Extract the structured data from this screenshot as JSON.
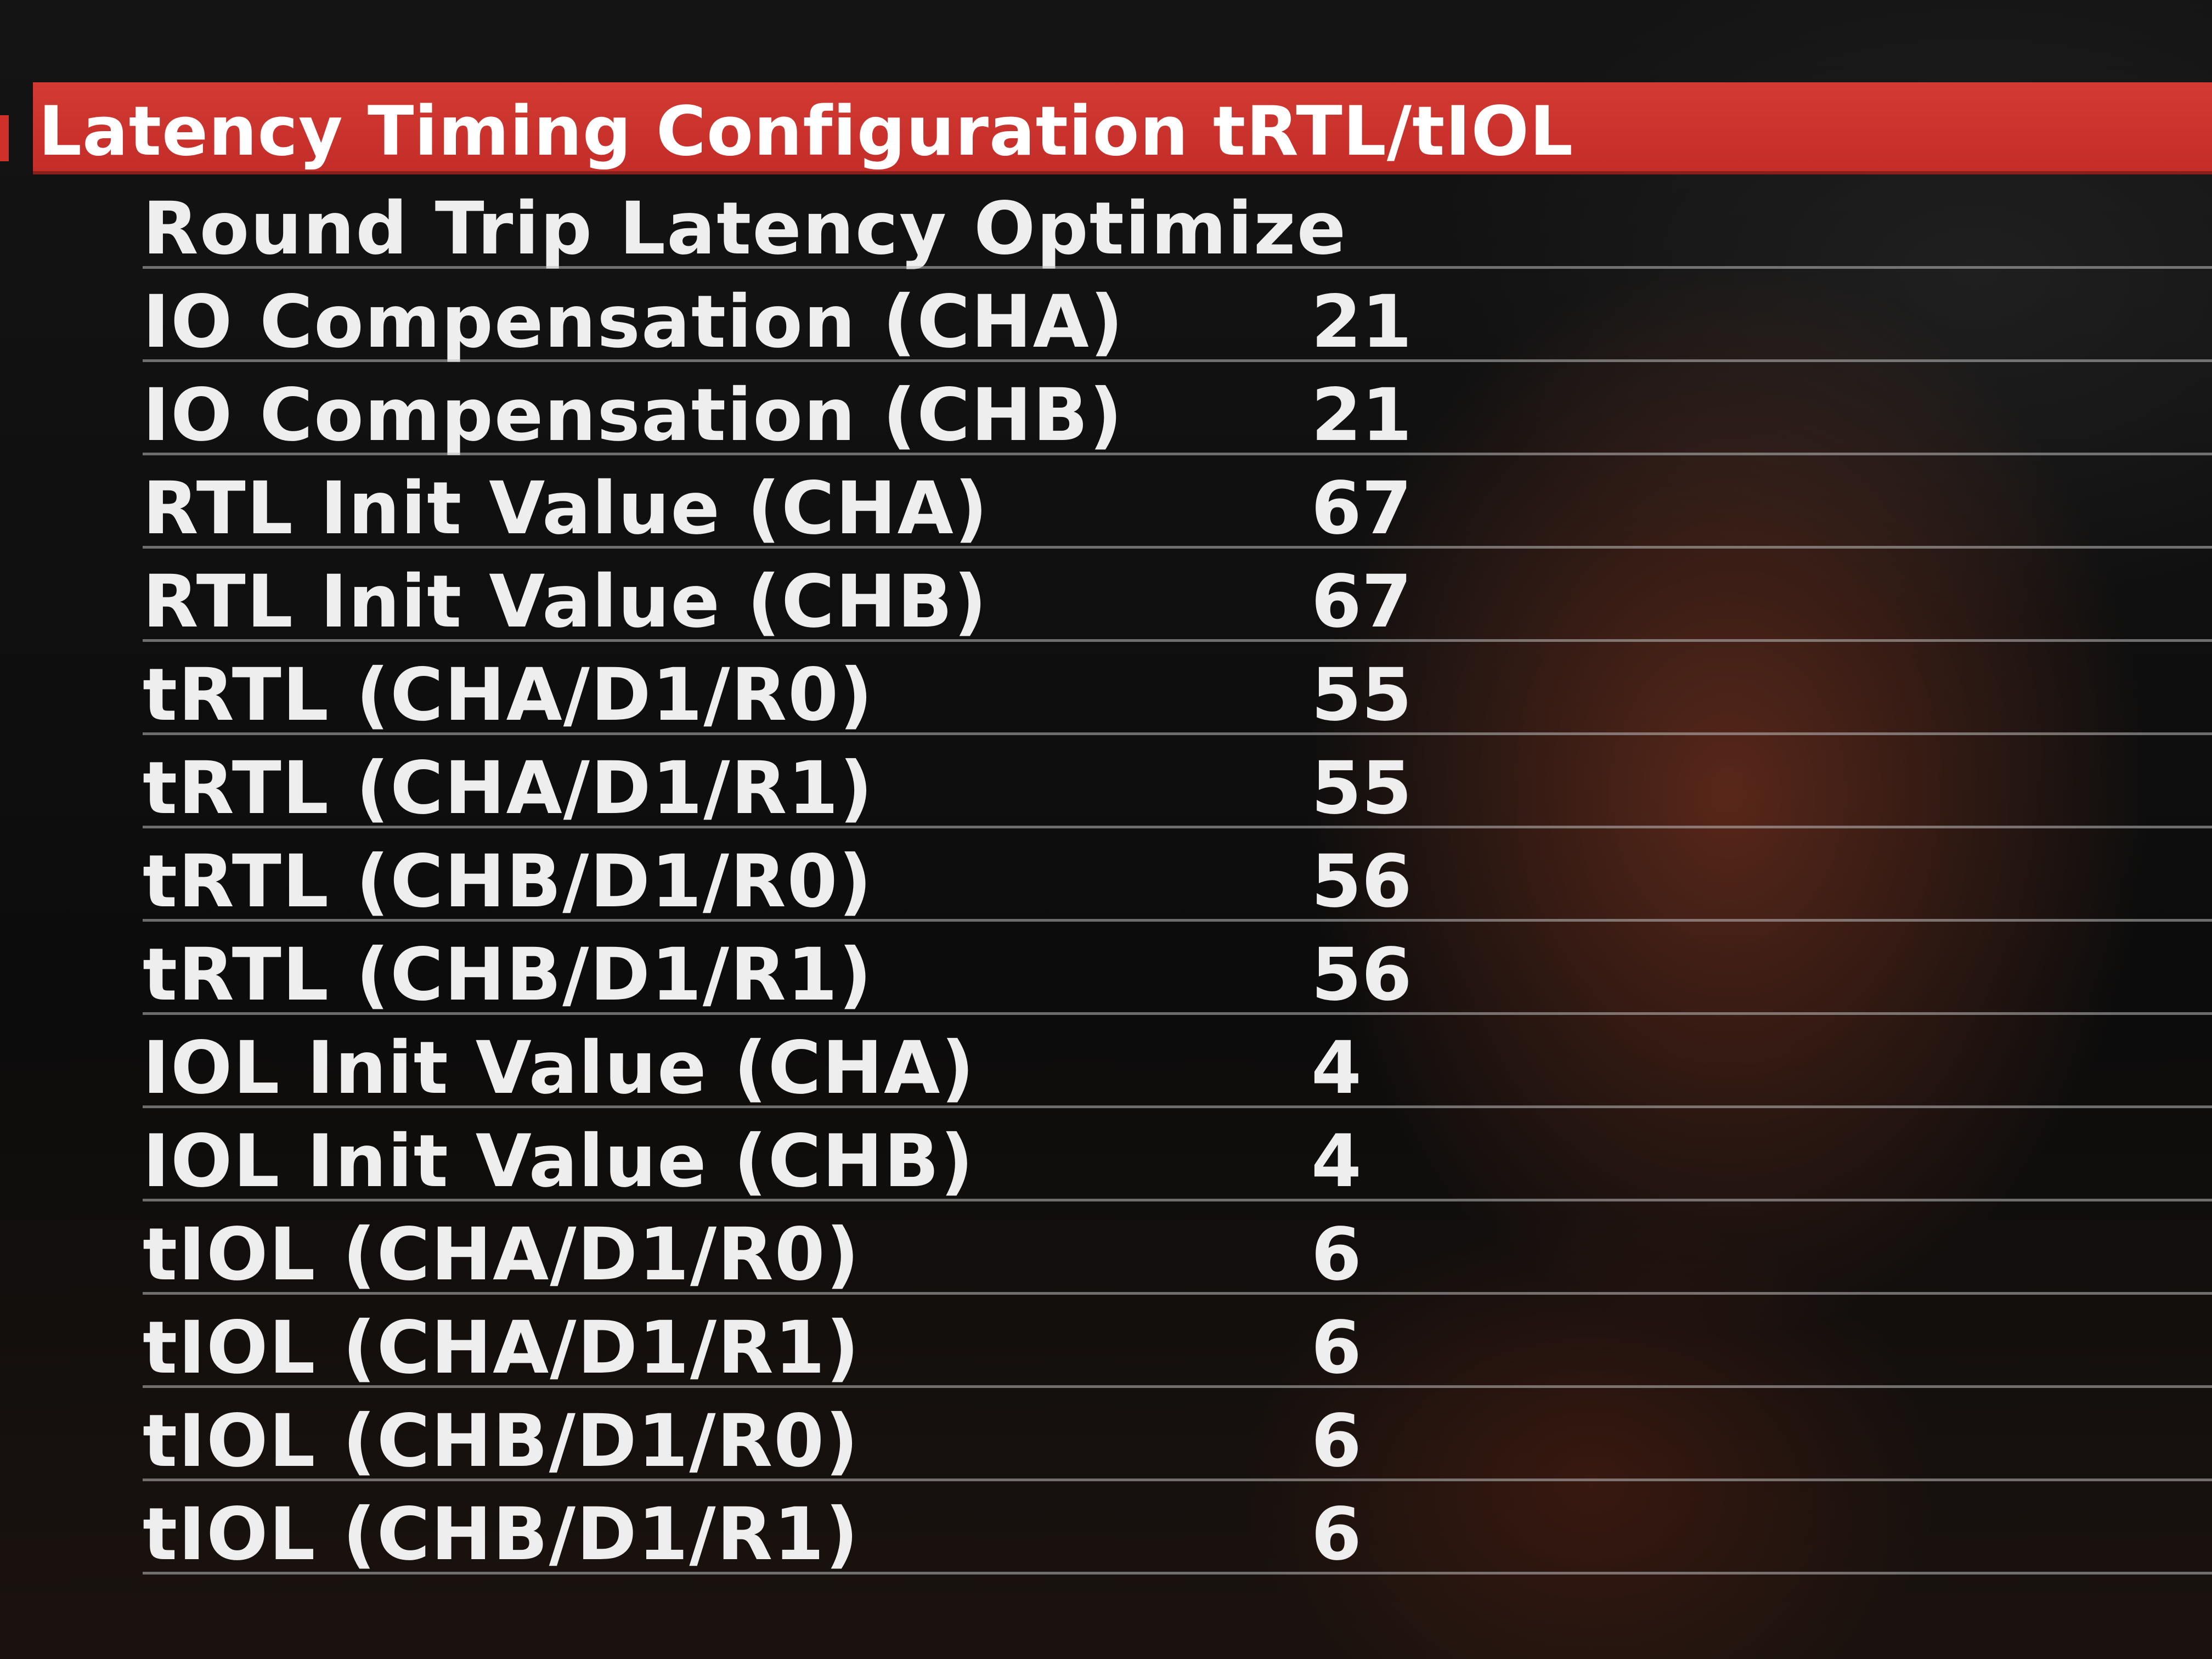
{
  "header": {
    "title": "Latency Timing Configuration tRTL/tIOL"
  },
  "settings": [
    {
      "label": "Round Trip Latency Optimize",
      "value": ""
    },
    {
      "label": "IO Compensation (CHA)",
      "value": "21"
    },
    {
      "label": "IO Compensation (CHB)",
      "value": "21"
    },
    {
      "label": "RTL Init Value (CHA)",
      "value": "67"
    },
    {
      "label": "RTL Init Value (CHB)",
      "value": "67"
    },
    {
      "label": "tRTL (CHA/D1/R0)",
      "value": "55"
    },
    {
      "label": "tRTL (CHA/D1/R1)",
      "value": "55"
    },
    {
      "label": "tRTL (CHB/D1/R0)",
      "value": "56"
    },
    {
      "label": "tRTL (CHB/D1/R1)",
      "value": "56"
    },
    {
      "label": "IOL Init Value (CHA)",
      "value": "4"
    },
    {
      "label": "IOL Init Value (CHB)",
      "value": "4"
    },
    {
      "label": "tIOL (CHA/D1/R0)",
      "value": "6"
    },
    {
      "label": "tIOL (CHA/D1/R1)",
      "value": "6"
    },
    {
      "label": "tIOL (CHB/D1/R0)",
      "value": "6"
    },
    {
      "label": "tIOL (CHB/D1/R1)",
      "value": "6"
    }
  ],
  "colors": {
    "header_accent": "#d23a33",
    "text": "#eeeeee",
    "background": "#0a0a0a"
  }
}
